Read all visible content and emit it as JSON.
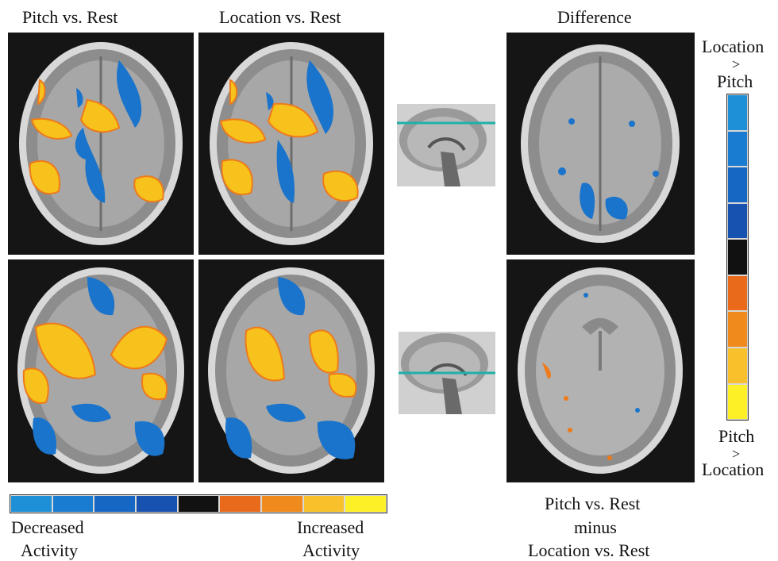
{
  "titles": {
    "col1": "Pitch vs. Rest",
    "col2": "Location vs. Rest",
    "col3": "Difference"
  },
  "colorbar": {
    "left_label_line1": "Decreased",
    "left_label_line2": "Activity",
    "right_label_line1": "Increased",
    "right_label_line2": "Activity",
    "colors": [
      "#1e90d8",
      "#1a7cd0",
      "#1666c4",
      "#1852b0",
      "#111111",
      "#e86a1a",
      "#f08a1c",
      "#f8c02a",
      "#fef026"
    ]
  },
  "side_scale": {
    "top_line1": "Location",
    "top_line2": ">",
    "top_line3": "Pitch",
    "bottom_line1": "Pitch",
    "bottom_line2": ">",
    "bottom_line3": "Location"
  },
  "caption": {
    "line1": "Pitch vs. Rest",
    "line2": "minus",
    "line3": "Location vs. Rest"
  },
  "colors": {
    "increase": "#f7c21c",
    "increase_edge": "#ee7a1a",
    "decrease": "#1a74cc",
    "slice_line": "#1fb0a8"
  }
}
